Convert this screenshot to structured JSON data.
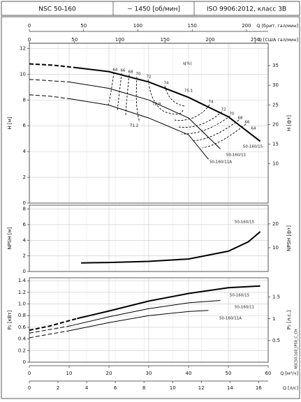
{
  "header": {
    "model": "NSC 50-160",
    "speed": "~ 1450 [об/мин]",
    "standard": "ISO 9906:2012, класс 3B"
  },
  "axes": {
    "q_uk": {
      "label": "Q [брит. гал/мин]",
      "lim": [
        0,
        220
      ],
      "ticks": [
        0,
        50,
        100,
        150,
        200
      ]
    },
    "q_us": {
      "label": "Q [США гал/мин]",
      "lim": [
        0,
        264.2
      ],
      "ticks": [
        0,
        50,
        100,
        150,
        200,
        250
      ]
    },
    "q_m3h": {
      "label": "Q [м³/ч]",
      "lim": [
        0,
        60
      ],
      "ticks": [
        0,
        10,
        20,
        30,
        40,
        50,
        60
      ]
    },
    "q_ls": {
      "label": "Q [л/с]",
      "lim": [
        0,
        16.667
      ],
      "ticks": [
        0,
        2,
        4,
        6,
        8,
        10,
        12,
        14,
        16
      ]
    }
  },
  "footnote": "NSC50-160_IP50_C_CH",
  "chart_data": [
    {
      "type": "line",
      "ylabel": "H [м]",
      "y2label": "H [фт]",
      "ylim": [
        0,
        12.4
      ],
      "yticks": [
        0,
        2,
        4,
        6,
        8,
        10,
        12
      ],
      "y2lim": [
        0,
        40.68
      ],
      "y2ticks": [
        10,
        15,
        20,
        25,
        30,
        35
      ],
      "grid": true,
      "series": [
        {
          "color": "#000000",
          "dashed": true,
          "width": 2,
          "x": [
            0,
            6,
            12
          ],
          "values": [
            10.8,
            10.7,
            10.5
          ]
        },
        {
          "color": "#000000",
          "dashed": false,
          "width": 2,
          "x": [
            12,
            20,
            30,
            40,
            50,
            58
          ],
          "values": [
            10.5,
            10.2,
            9.4,
            8.2,
            6.7,
            4.8
          ]
        },
        {
          "color": "#000000",
          "dashed": true,
          "width": 1,
          "x": [
            0,
            5,
            10
          ],
          "values": [
            9.6,
            9.5,
            9.4
          ]
        },
        {
          "color": "#000000",
          "dashed": false,
          "width": 1,
          "x": [
            10,
            20,
            30,
            40,
            48
          ],
          "values": [
            9.4,
            8.9,
            8.0,
            6.6,
            4.2
          ]
        },
        {
          "color": "#000000",
          "dashed": true,
          "width": 1,
          "x": [
            0,
            5,
            10
          ],
          "values": [
            8.4,
            8.3,
            8.1
          ]
        },
        {
          "color": "#000000",
          "dashed": false,
          "width": 1,
          "x": [
            10,
            20,
            30,
            40,
            45
          ],
          "values": [
            8.1,
            7.6,
            6.6,
            5.3,
            3.4
          ]
        }
      ],
      "annotations": [
        "64",
        "66",
        "68",
        "70",
        "72",
        "74",
        "75.1",
        "72.9",
        "71.2",
        "74",
        "72",
        "70",
        "68",
        "66",
        "64",
        "η[%]",
        "50-160/15",
        "50-160/11",
        "50-160/11A"
      ]
    },
    {
      "type": "line",
      "ylabel": "NPSH [м]",
      "y2label": "NPSH [фт]",
      "ylim": [
        0,
        8.5
      ],
      "yticks": [
        0,
        2,
        4,
        6,
        8
      ],
      "y2lim": [
        0,
        27.89
      ],
      "y2ticks": [
        10,
        20
      ],
      "grid": true,
      "series": [
        {
          "color": "#000000",
          "dashed": false,
          "width": 2,
          "x": [
            13,
            20,
            30,
            40,
            50,
            55,
            58
          ],
          "values": [
            1.1,
            1.15,
            1.3,
            1.6,
            2.6,
            3.8,
            5.1
          ]
        }
      ],
      "annotations": [
        "50-160/15"
      ]
    },
    {
      "type": "line",
      "ylabel": "P₂ [кВт]",
      "y2label": "P₂ [л.с.]",
      "ylim": [
        0,
        1.45
      ],
      "yticks": [
        0,
        0.2,
        0.4,
        0.6,
        0.8,
        {
          "value": 1,
          "label": "1.0"
        },
        1.2,
        1.4
      ],
      "y2lim": [
        0,
        1.944
      ],
      "y2ticks": [
        0.5,
        1,
        1.5
      ],
      "grid": true,
      "series": [
        {
          "color": "#000000",
          "dashed": true,
          "width": 2,
          "x": [
            0,
            5,
            12
          ],
          "values": [
            0.55,
            0.62,
            0.75
          ]
        },
        {
          "color": "#000000",
          "dashed": false,
          "width": 2,
          "x": [
            12,
            20,
            30,
            40,
            50,
            58
          ],
          "values": [
            0.75,
            0.88,
            1.05,
            1.18,
            1.28,
            1.31
          ]
        },
        {
          "color": "#000000",
          "dashed": true,
          "width": 1,
          "x": [
            0,
            5,
            10
          ],
          "values": [
            0.5,
            0.56,
            0.62
          ]
        },
        {
          "color": "#000000",
          "dashed": false,
          "width": 1,
          "x": [
            10,
            20,
            30,
            40,
            48
          ],
          "values": [
            0.62,
            0.78,
            0.92,
            1.02,
            1.06
          ]
        },
        {
          "color": "#000000",
          "dashed": true,
          "width": 1,
          "x": [
            0,
            5,
            10
          ],
          "values": [
            0.42,
            0.48,
            0.54
          ]
        },
        {
          "color": "#000000",
          "dashed": false,
          "width": 1,
          "x": [
            10,
            20,
            30,
            40,
            45
          ],
          "values": [
            0.54,
            0.68,
            0.8,
            0.87,
            0.89
          ]
        }
      ],
      "annotations": [
        "50-160/15",
        "50-160/11",
        "50-160/11A"
      ]
    }
  ]
}
